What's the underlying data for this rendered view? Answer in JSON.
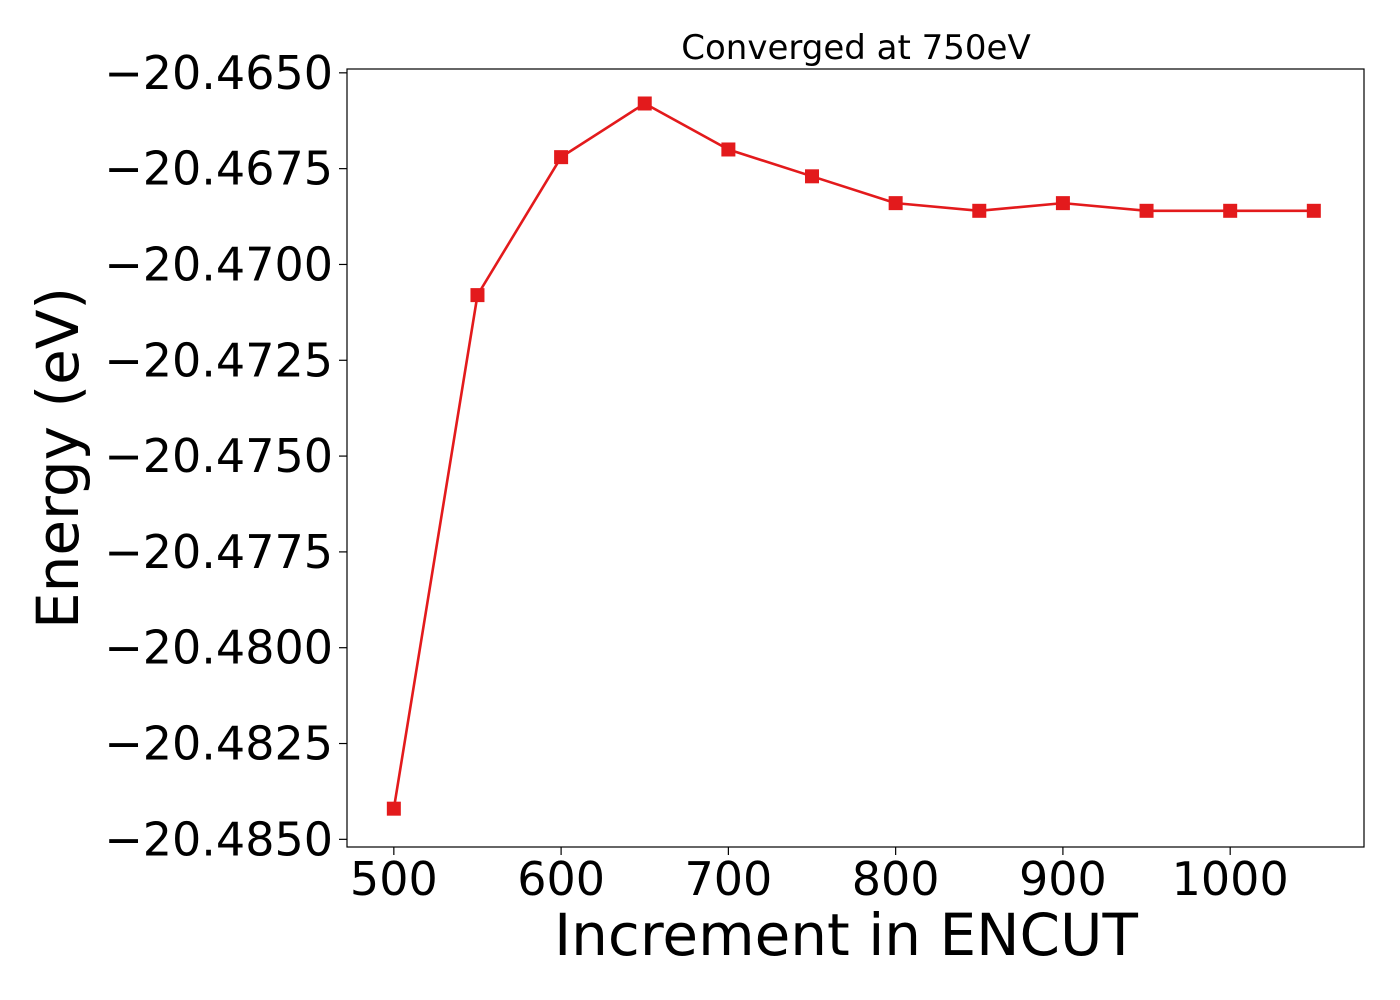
{
  "chart_data": {
    "type": "line",
    "title": "Converged at 750eV",
    "xlabel": "Increment in ENCUT",
    "ylabel": "Energy (eV)",
    "xlim": [
      472,
      1080
    ],
    "ylim": [
      -20.4852,
      -20.4649
    ],
    "x_ticks": [
      500,
      600,
      700,
      800,
      900,
      1000
    ],
    "x_tick_labels": [
      "500",
      "600",
      "700",
      "800",
      "900",
      "1000"
    ],
    "y_ticks": [
      -20.465,
      -20.4675,
      -20.47,
      -20.4725,
      -20.475,
      -20.4775,
      -20.48,
      -20.4825,
      -20.485
    ],
    "y_tick_labels": [
      "−20.4650",
      "−20.4675",
      "−20.4700",
      "−20.4725",
      "−20.4750",
      "−20.4775",
      "−20.4800",
      "−20.4825",
      "−20.4850"
    ],
    "grid": false,
    "series": [
      {
        "color": "#e31a1c",
        "marker": "square",
        "x": [
          500,
          550,
          600,
          650,
          700,
          750,
          800,
          850,
          900,
          950,
          1000,
          1050
        ],
        "y": [
          -20.4842,
          -20.4708,
          -20.4672,
          -20.4658,
          -20.467,
          -20.4677,
          -20.4684,
          -20.4686,
          -20.4684,
          -20.4686,
          -20.4686,
          -20.4686
        ]
      }
    ]
  }
}
